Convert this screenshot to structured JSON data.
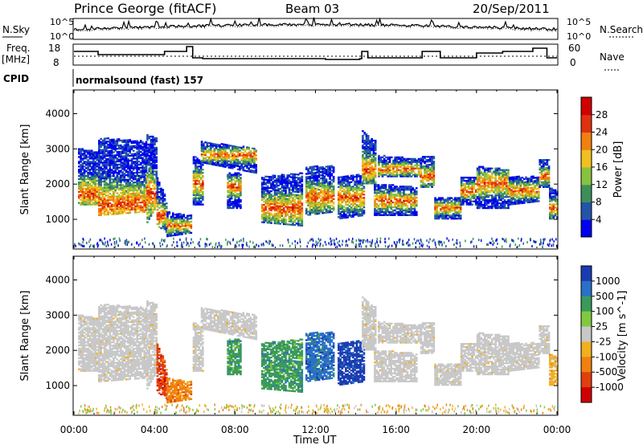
{
  "header": {
    "station": "Prince George (fitACF)",
    "beam": "Beam 03",
    "date": "20/Sep/2011"
  },
  "status_panels": {
    "nsky_label": "N.Sky",
    "nsearch_label": "N.Search",
    "noise_tick_top": "10^5",
    "noise_tick_bottom": "10^0",
    "freq_label_1": "Freq.",
    "freq_label_2": "[MHz]",
    "freq_ticks": [
      "18",
      "8"
    ],
    "nave_label": "Nave",
    "nave_ticks": [
      "60",
      "0"
    ],
    "cpid_label": "CPID",
    "cpid_text": "normalsound (fast) 157"
  },
  "colors": {
    "power_scale": [
      "#0000ee",
      "#2255aa",
      "#3d8f5a",
      "#88c240",
      "#f0c020",
      "#f08010",
      "#e03010",
      "#d00000"
    ],
    "velocity_scale": [
      "#1a3cb0",
      "#2a70c8",
      "#3a9a5a",
      "#80c840",
      "#c8c8c8",
      "#f0b020",
      "#f08010",
      "#e04010",
      "#d00000"
    ],
    "velocity_ground": "#c8c8c8"
  },
  "chart_data": [
    {
      "type": "heatmap",
      "name": "power",
      "ylabel": "Slant Range [km]",
      "yticks": [
        1000,
        2000,
        3000,
        4000
      ],
      "ylim": [
        180,
        4650
      ],
      "colorbar_label": "Power [dB]",
      "colorbar_ticks": [
        "4",
        "8",
        "12",
        "16",
        "20",
        "24",
        "28"
      ],
      "colorbar_range": [
        0,
        32
      ]
    },
    {
      "type": "heatmap",
      "name": "velocity",
      "ylabel": "Slant Range [km]",
      "yticks": [
        1000,
        2000,
        3000,
        4000
      ],
      "ylim": [
        180,
        4650
      ],
      "colorbar_label": "Velocity [m s^-1]",
      "colorbar_ticks": [
        "1000",
        "500",
        "100",
        "25",
        "-25",
        "-100",
        "-500",
        "-1000"
      ]
    }
  ],
  "xaxis": {
    "xlabel": "Time UT",
    "ticks": [
      "00:00",
      "04:00",
      "08:00",
      "12:00",
      "16:00",
      "20:00",
      "00:00"
    ],
    "range_hours": [
      0,
      24
    ]
  }
}
